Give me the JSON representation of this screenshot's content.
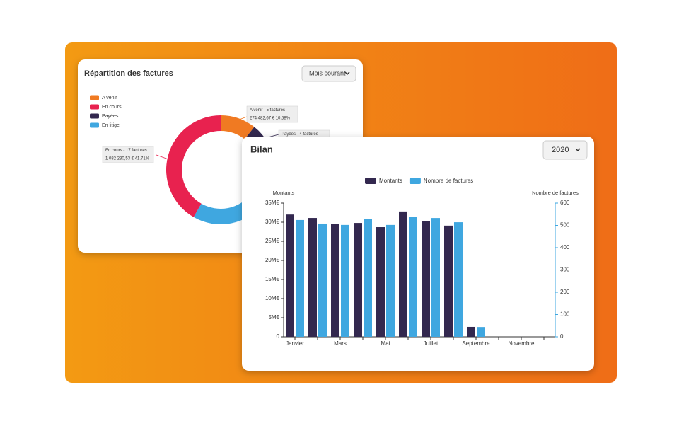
{
  "chart_data": [
    {
      "type": "donut",
      "title": "Répartition des factures",
      "filter": "Mois courant",
      "categories": [
        "A venir",
        "En cours",
        "Payées",
        "En litige"
      ],
      "values": [
        10.58,
        41.71,
        25,
        22.71
      ],
      "colors": [
        "#f07a22",
        "#e8224f",
        "#33284f",
        "#3fa7e0"
      ],
      "labels": [
        "A venir - 5 factures",
        "En cours - 17 factures",
        "Payées - 4 factures",
        null
      ],
      "value_labels": [
        "274 482,67 €  10.58%",
        "1 082 230,53 €  41.71%",
        null,
        null
      ],
      "legend": "top-left"
    },
    {
      "type": "bar",
      "title": "Bilan",
      "filter": "2020",
      "categories": [
        "Janvier",
        null,
        "Mars",
        null,
        "Mai",
        null,
        "Juillet",
        null,
        "Septembre",
        null,
        "Novembre",
        null
      ],
      "series": [
        {
          "name": "Montants",
          "color": "#33284f",
          "values": [
            32.0,
            31.1,
            29.6,
            29.8,
            28.7,
            32.8,
            30.2,
            29.1,
            2.6,
            null,
            null,
            null
          ]
        },
        {
          "name": "Nombre de factures",
          "color": "#3fa7e0",
          "axis": "y2",
          "values": [
            524,
            508,
            502,
            527,
            502,
            537,
            533,
            514,
            44,
            null,
            null,
            null
          ]
        }
      ],
      "ylabel": "Montants",
      "y2label": "Nombre de factures",
      "ylim": [
        0,
        35
      ],
      "yticks": [
        0,
        {
          "value": 5,
          "label": "5M€"
        },
        {
          "value": 10,
          "label": "10M€"
        },
        {
          "value": 15,
          "label": "15M€"
        },
        {
          "value": 20,
          "label": "20M€"
        },
        {
          "value": 25,
          "label": "25M€"
        },
        {
          "value": 30,
          "label": "30M€"
        },
        {
          "value": 35,
          "label": "35M€"
        }
      ],
      "y2lim": [
        0,
        600
      ],
      "y2ticks": [
        0,
        100,
        200,
        300,
        400,
        500,
        600
      ],
      "legend": "top"
    }
  ]
}
